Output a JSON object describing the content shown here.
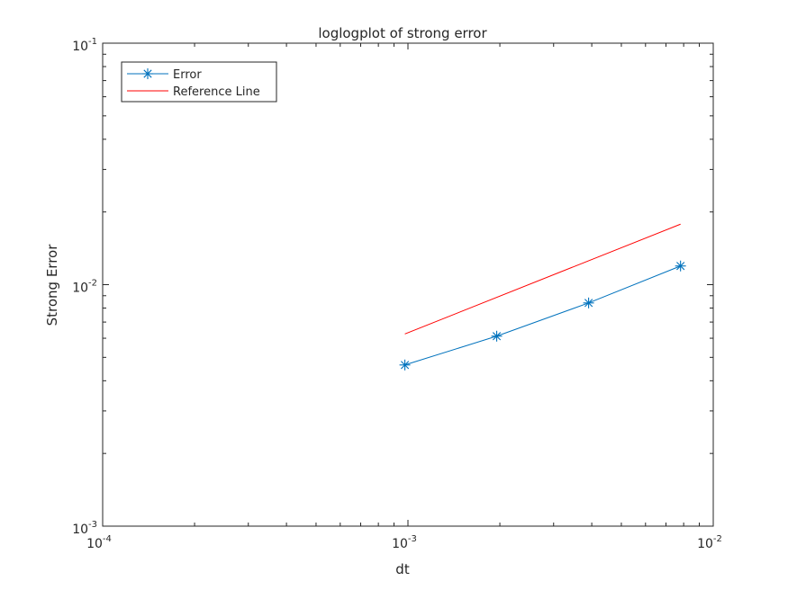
{
  "chart_data": {
    "type": "line",
    "title": "loglogplot of strong error",
    "xlabel": "dt",
    "ylabel": "Strong Error",
    "xscale": "log",
    "yscale": "log",
    "xlim": [
      0.0001,
      0.01
    ],
    "ylim": [
      0.001,
      0.1
    ],
    "grid": false,
    "legend_position": "top-left",
    "x_ticks": [
      {
        "value": 0.0001,
        "base": "10",
        "exp": "-4"
      },
      {
        "value": 0.001,
        "base": "10",
        "exp": "-3"
      },
      {
        "value": 0.01,
        "base": "10",
        "exp": "-2"
      }
    ],
    "y_ticks": [
      {
        "value": 0.001,
        "base": "10",
        "exp": "-3"
      },
      {
        "value": 0.01,
        "base": "10",
        "exp": "-2"
      },
      {
        "value": 0.1,
        "base": "10",
        "exp": "-1"
      }
    ],
    "series": [
      {
        "name": "Error",
        "color": "#0072BD",
        "marker": "asterisk",
        "x": [
          0.000977,
          0.001953,
          0.003906,
          0.007813
        ],
        "y": [
          0.00465,
          0.00612,
          0.0084,
          0.01195
        ]
      },
      {
        "name": "Reference Line",
        "color": "#FF0000",
        "marker": "none",
        "x": [
          0.000977,
          0.007813
        ],
        "y": [
          0.00625,
          0.0178
        ]
      }
    ]
  }
}
